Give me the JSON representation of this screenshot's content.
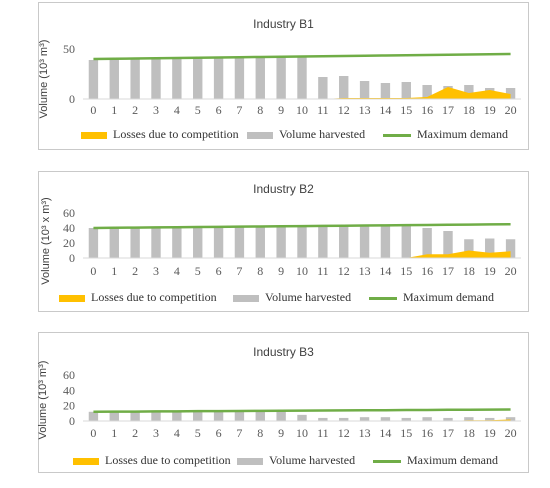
{
  "legend": {
    "losses": "Losses due to competition",
    "harvested": "Volume harvested",
    "demand": "Maximum demand"
  },
  "colors": {
    "losses": "#ffc000",
    "harvested": "#bfbfbf",
    "demand": "#70ad47",
    "axis": "#d9d9d9",
    "text": "#595959"
  },
  "chart_data": [
    {
      "type": "bar",
      "title": "Industry B1",
      "ylabel": "Volume (10³ m³)",
      "ylim": [
        0,
        50
      ],
      "yticks": [
        0,
        50
      ],
      "categories": [
        "0",
        "1",
        "2",
        "3",
        "4",
        "5",
        "6",
        "7",
        "8",
        "9",
        "10",
        "11",
        "12",
        "13",
        "14",
        "15",
        "16",
        "17",
        "18",
        "19",
        "20"
      ],
      "series": [
        {
          "name": "Volume harvested",
          "type": "bar",
          "values": [
            39,
            40,
            40,
            40,
            41,
            41,
            41,
            42,
            42,
            42,
            43,
            22,
            23,
            18,
            16,
            17,
            14,
            13,
            14,
            11,
            11
          ]
        },
        {
          "name": "Losses due to competition",
          "type": "area",
          "values": [
            0,
            0,
            0,
            0,
            0,
            0,
            0,
            0,
            0,
            0,
            0,
            0,
            1,
            1,
            1,
            1,
            2,
            12,
            6,
            9,
            5
          ]
        },
        {
          "name": "Maximum demand",
          "type": "line",
          "values": [
            40,
            40.3,
            40.5,
            40.8,
            41,
            41.3,
            41.5,
            41.8,
            42,
            42.3,
            42.5,
            42.8,
            43,
            43.3,
            43.5,
            43.8,
            44,
            44.3,
            44.5,
            44.8,
            45
          ]
        }
      ]
    },
    {
      "type": "bar",
      "title": "Industry B2",
      "ylabel": "Volume (10³ x m³)",
      "ylim": [
        0,
        60
      ],
      "yticks": [
        0,
        20,
        40,
        60
      ],
      "categories": [
        "0",
        "1",
        "2",
        "3",
        "4",
        "5",
        "6",
        "7",
        "8",
        "9",
        "10",
        "11",
        "12",
        "13",
        "14",
        "15",
        "16",
        "17",
        "18",
        "19",
        "20"
      ],
      "series": [
        {
          "name": "Volume harvested",
          "type": "bar",
          "values": [
            40,
            40,
            40,
            41,
            41,
            41,
            41,
            42,
            42,
            42,
            42,
            43,
            43,
            43,
            43,
            43,
            40,
            36,
            25,
            26,
            25
          ]
        },
        {
          "name": "Losses due to competition",
          "type": "area",
          "values": [
            0,
            0,
            0,
            0,
            0,
            0,
            0,
            0,
            0,
            0,
            0,
            0,
            0,
            0,
            0,
            0,
            5,
            5,
            10,
            7,
            9
          ]
        },
        {
          "name": "Maximum demand",
          "type": "line",
          "values": [
            40,
            40.3,
            40.5,
            40.8,
            41,
            41.3,
            41.5,
            41.8,
            42,
            42.3,
            42.5,
            42.8,
            43,
            43.3,
            43.5,
            43.8,
            44,
            44.3,
            44.5,
            44.8,
            45
          ]
        }
      ]
    },
    {
      "type": "bar",
      "title": "Industry B3",
      "ylabel": "Volume (10³ m³)",
      "ylim": [
        0,
        60
      ],
      "yticks": [
        0,
        20,
        40,
        60
      ],
      "categories": [
        "0",
        "1",
        "2",
        "3",
        "4",
        "5",
        "6",
        "7",
        "8",
        "9",
        "10",
        "11",
        "12",
        "13",
        "14",
        "15",
        "16",
        "17",
        "18",
        "19",
        "20"
      ],
      "series": [
        {
          "name": "Volume harvested",
          "type": "bar",
          "values": [
            12,
            12,
            12,
            12,
            12,
            13,
            13,
            13,
            13,
            13,
            8,
            4,
            4,
            5,
            5,
            4,
            5,
            4,
            5,
            4,
            5
          ]
        },
        {
          "name": "Losses due to competition",
          "type": "area",
          "values": [
            0,
            0,
            0,
            0,
            0,
            0,
            0,
            0,
            0,
            0,
            0,
            0,
            0,
            0,
            0,
            0,
            0,
            0,
            1,
            1,
            2
          ]
        },
        {
          "name": "Maximum demand",
          "type": "line",
          "values": [
            12,
            12.2,
            12.3,
            12.5,
            12.6,
            12.8,
            12.9,
            13.1,
            13.2,
            13.4,
            13.5,
            13.7,
            13.8,
            14,
            14.1,
            14.3,
            14.4,
            14.6,
            14.7,
            14.9,
            15
          ]
        }
      ]
    }
  ]
}
